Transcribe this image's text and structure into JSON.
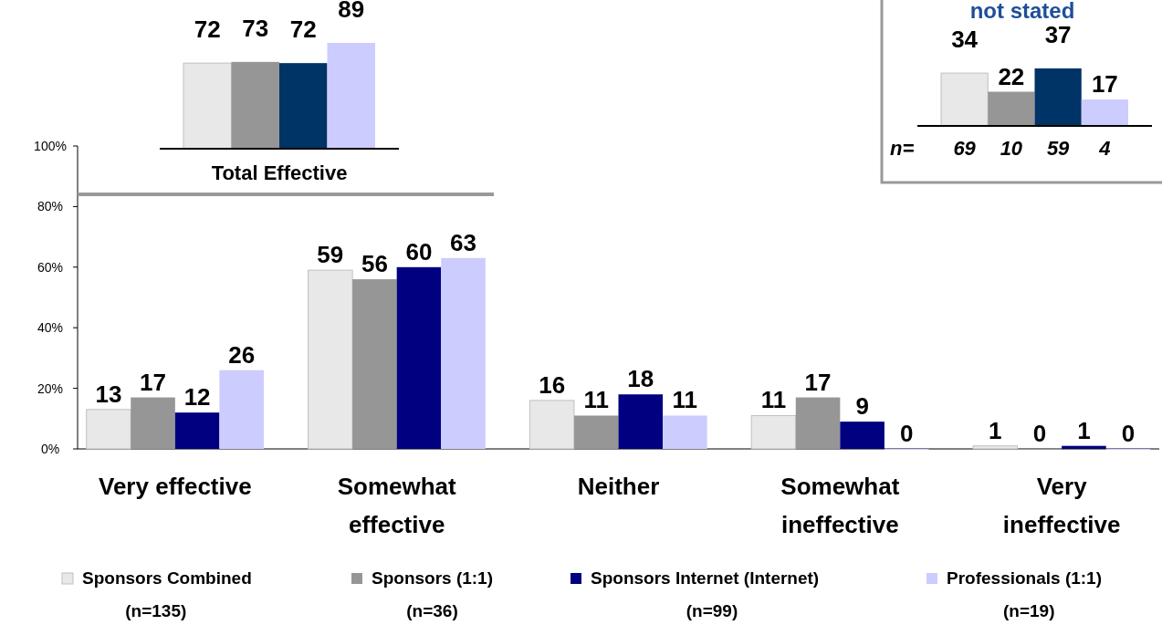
{
  "chart_data": [
    {
      "type": "bar",
      "categories": [
        "Very effective",
        "Somewhat\neffective",
        "Neither",
        "Somewhat\nineffective",
        "Very\nineffective"
      ],
      "ylim": [
        0,
        100
      ],
      "yticks": [
        {
          "value": 0,
          "label": "0%"
        },
        {
          "value": 20,
          "label": "20%"
        },
        {
          "value": 40,
          "label": "40%"
        },
        {
          "value": 60,
          "label": "60%"
        },
        {
          "value": 80,
          "label": "80%"
        },
        {
          "value": 100,
          "label": "100%"
        }
      ],
      "data_labels": true,
      "legend": "bottom",
      "series": [
        {
          "name": "Sponsors Combined\n(n=135)",
          "color": "#e8e8e8",
          "values": [
            13,
            59,
            16,
            11,
            1
          ]
        },
        {
          "name": "Sponsors (1:1)\n(n=36)",
          "color": "#969696",
          "values": [
            17,
            56,
            11,
            17,
            0
          ]
        },
        {
          "name": "Sponsors Internet (Internet)\n(n=99)",
          "color": "#000080",
          "values": [
            12,
            60,
            18,
            9,
            1
          ]
        },
        {
          "name": "Professionals (1:1)\n(n=19)",
          "color": "#ccccff",
          "values": [
            26,
            63,
            11,
            0,
            0
          ]
        }
      ]
    },
    {
      "type": "bar",
      "xlabel": "Total Effective",
      "categories": [
        null,
        null,
        null,
        null
      ],
      "values": [
        72,
        73,
        72,
        89
      ],
      "colors": [
        "#e8e8e8",
        "#969696",
        "#003366",
        "#ccccff"
      ],
      "data_labels": true
    },
    {
      "type": "bar",
      "title": "not stated",
      "categories": [
        "69",
        "10",
        "59",
        "4"
      ],
      "values": [
        34,
        22,
        37,
        17
      ],
      "colors": [
        "#e8e8e8",
        "#969696",
        "#003366",
        "#ccccff"
      ],
      "data_labels": true,
      "annotations": [
        "n="
      ]
    }
  ]
}
